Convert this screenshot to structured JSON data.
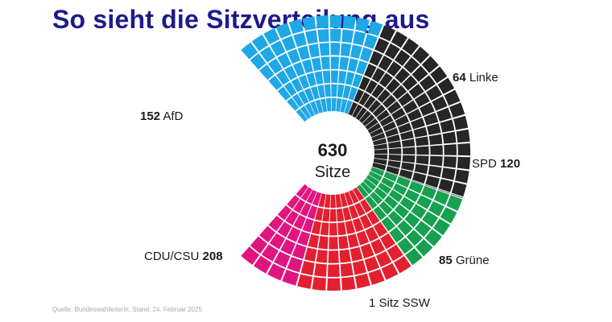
{
  "title": "So sieht die Sitzverteilung aus",
  "source": "Quelle: Bundeswahlleiterin, Stand: 24. Februar 2025",
  "chart_data": {
    "type": "pie",
    "subtype": "parliament-semicircle",
    "center_label": {
      "value": "630",
      "unit": "Sitze"
    },
    "total_seats": 630,
    "parties": [
      {
        "name": "AfD",
        "seats": 152,
        "color": "#1fa7e6",
        "label": "AfD"
      },
      {
        "name": "CDU/CSU",
        "seats": 208,
        "color": "#262626",
        "label": "CDU/CSU"
      },
      {
        "name": "SSW",
        "seats": 1,
        "color": "#262626",
        "label": "1 Sitz SSW"
      },
      {
        "name": "Grüne",
        "seats": 85,
        "color": "#17a050",
        "label": "Grüne"
      },
      {
        "name": "SPD",
        "seats": 120,
        "color": "#e3202f",
        "label": "SPD"
      },
      {
        "name": "Linke",
        "seats": 64,
        "color": "#e0157f",
        "label": "Linke"
      }
    ]
  }
}
